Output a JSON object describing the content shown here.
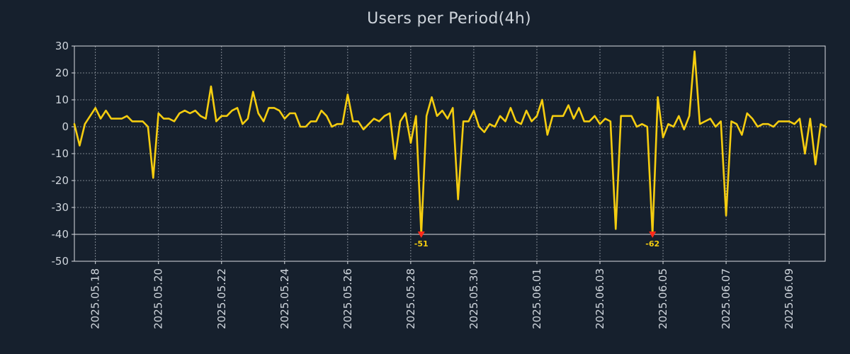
{
  "chart_data": {
    "type": "line",
    "title": "Users per Period(4h)",
    "xlabel": "",
    "ylabel": "",
    "ylim": [
      -50,
      30
    ],
    "yticks": [
      30,
      20,
      10,
      0,
      -10,
      -20,
      -30,
      -40,
      -50
    ],
    "x_date_range": [
      "2025-05-17 08:00",
      "2025-06-10 12:00"
    ],
    "x_step_hours": 4,
    "xtick_labels": [
      "2025.05.18",
      "2025.05.20",
      "2025.05.22",
      "2025.05.24",
      "2025.05.26",
      "2025.05.28",
      "2025.05.30",
      "2025.06.01",
      "2025.06.03",
      "2025.06.05",
      "2025.06.07",
      "2025.06.09"
    ],
    "xtick_positions_index": [
      4,
      16,
      28,
      40,
      52,
      64,
      76,
      88,
      100,
      112,
      124,
      136
    ],
    "grid": true,
    "clip_line_value": -40,
    "series": [
      {
        "name": "Users per Period(4h)",
        "color": "#f5cd10",
        "values": [
          1,
          -7,
          1,
          4,
          7,
          3,
          6,
          3,
          3,
          3,
          4,
          2,
          2,
          2,
          0,
          -19,
          5,
          3,
          3,
          2,
          5,
          6,
          5,
          6,
          4,
          3,
          15,
          2,
          4,
          4,
          6,
          7,
          1,
          3,
          13,
          5,
          2,
          7,
          7,
          6,
          3,
          5,
          5,
          0,
          0,
          2,
          2,
          6,
          4,
          0,
          1,
          1,
          12,
          2,
          2,
          -1,
          1,
          3,
          2,
          4,
          5,
          -12,
          2,
          5,
          -6,
          4,
          -40,
          4,
          11,
          4,
          6,
          3,
          7,
          -27,
          2,
          2,
          6,
          0,
          -2,
          1,
          0,
          4,
          2,
          7,
          2,
          1,
          6,
          2,
          4,
          10,
          -3,
          4,
          4,
          4,
          8,
          3,
          7,
          2,
          2,
          4,
          1,
          3,
          2,
          -38,
          4,
          4,
          4,
          0,
          1,
          0,
          -40,
          11,
          -4,
          1,
          0,
          4,
          -1,
          4,
          28,
          1,
          2,
          3,
          0,
          2,
          -33,
          2,
          1,
          -3,
          5,
          3,
          0,
          1,
          1,
          0,
          2,
          2,
          2,
          1,
          3,
          -10,
          3,
          -14,
          1,
          0
        ]
      }
    ],
    "annotations": [
      {
        "index": 66,
        "value": -40,
        "label": "-51",
        "marker": "triangle-down",
        "color": "#ff2a1a"
      },
      {
        "index": 110,
        "value": -40,
        "label": "-62",
        "marker": "triangle-down",
        "color": "#ff2a1a"
      }
    ]
  }
}
